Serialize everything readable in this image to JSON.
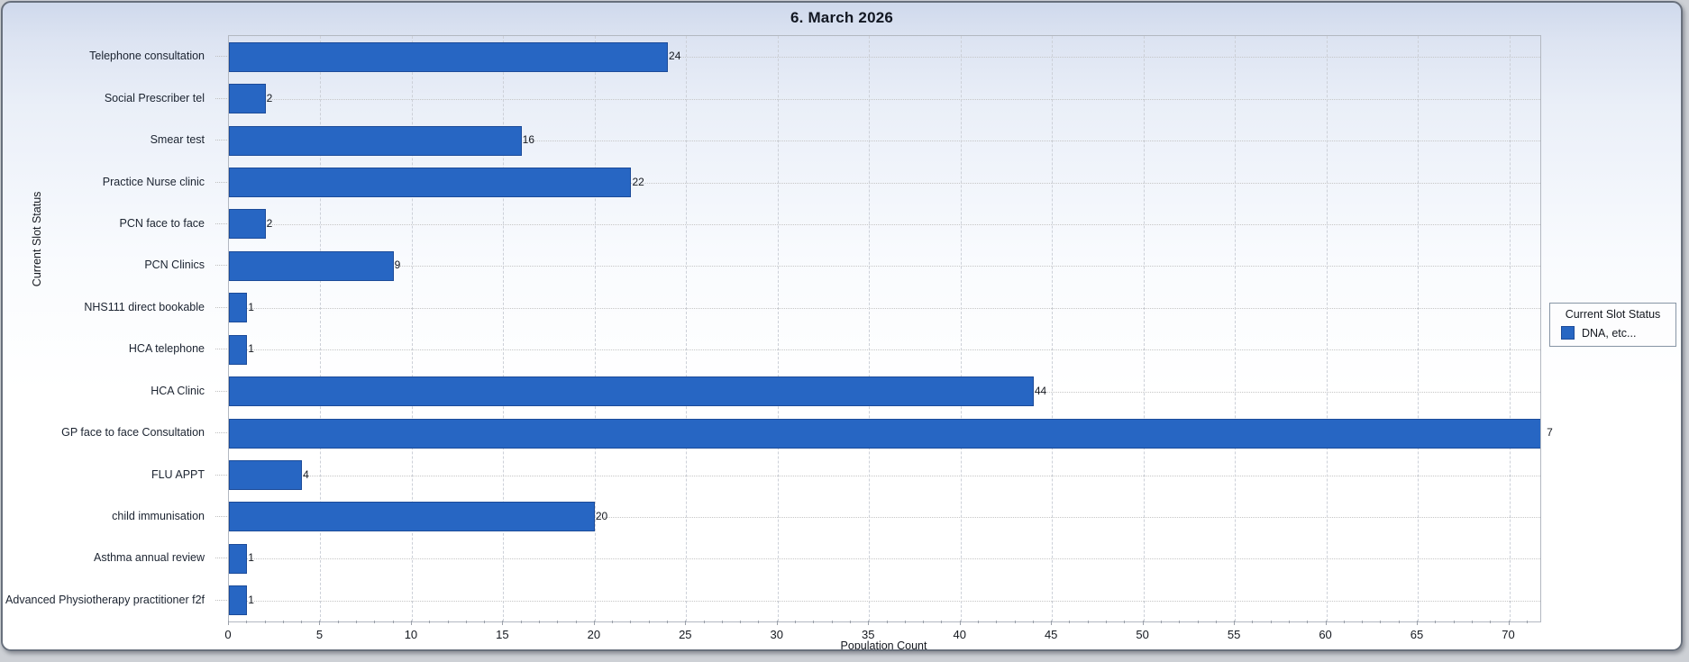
{
  "window": {
    "title": "6. March 2026"
  },
  "chart_data": {
    "type": "bar",
    "orientation": "horizontal",
    "title": "6. March 2026",
    "xlabel": "Population Count",
    "ylabel": "Current Slot Status",
    "categories": [
      "Telephone consultation",
      "Social Prescriber tel",
      "Smear test",
      "Practice Nurse clinic",
      "PCN face to face",
      "PCN Clinics",
      "NHS111 direct bookable",
      "HCA telephone",
      "HCA Clinic",
      "GP face to face Consultation",
      "FLU APPT",
      "child immunisation",
      "Asthma annual review",
      "Advanced Physiotherapy practitioner f2f"
    ],
    "values": [
      24,
      2,
      16,
      22,
      2,
      9,
      1,
      1,
      44,
      72,
      4,
      20,
      1,
      1
    ],
    "xlim": [
      0,
      71.7
    ],
    "xticks": [
      0,
      5,
      10,
      15,
      20,
      25,
      30,
      35,
      40,
      45,
      50,
      55,
      60,
      65,
      70
    ],
    "grid": {
      "vertical": "dashed-every-5",
      "horizontal": "dotted-every-row"
    },
    "legend": {
      "position": "right",
      "title": "Current Slot Status",
      "entries": [
        {
          "label": "DNA, etc...",
          "color": "#2766c3"
        }
      ]
    },
    "bar_color": "#2766c3",
    "bar_border_color": "#1c4b99"
  }
}
